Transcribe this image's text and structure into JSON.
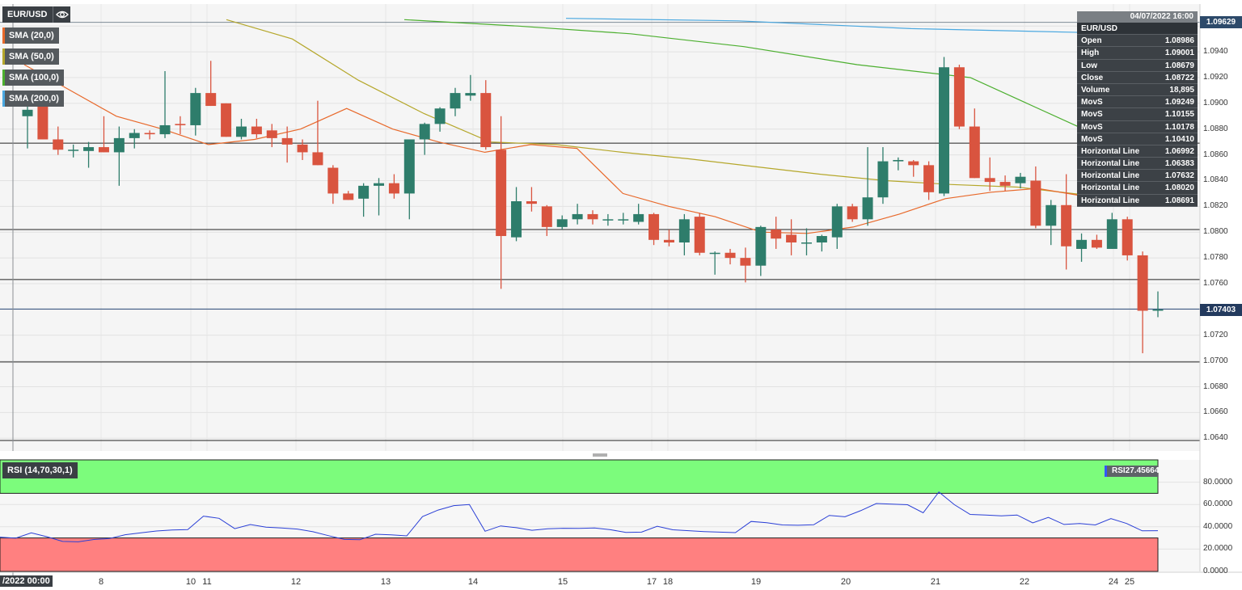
{
  "header": {
    "symbol": "EUR/USD",
    "eye_icon": "eye-icon",
    "indicators": [
      {
        "label": "SMA (20,0)",
        "color": "#e8692b"
      },
      {
        "label": "SMA (50,0)",
        "color": "#b5a72b"
      },
      {
        "label": "SMA (100,0)",
        "color": "#4caf2f"
      },
      {
        "label": "SMA (200,0)",
        "color": "#4aa8e0"
      }
    ]
  },
  "infobox": {
    "datetime": "04/07/2022 16:00",
    "symbol": "EUR/USD",
    "rows": [
      {
        "label": "Open",
        "value": "1.08986"
      },
      {
        "label": "High",
        "value": "1.09001"
      },
      {
        "label": "Low",
        "value": "1.08679"
      },
      {
        "label": "Close",
        "value": "1.08722"
      },
      {
        "label": "Volume",
        "value": "18,895"
      },
      {
        "label": "MovS",
        "value": "1.09249"
      },
      {
        "label": "MovS",
        "value": "1.10155"
      },
      {
        "label": "MovS",
        "value": "1.10178"
      },
      {
        "label": "MovS",
        "value": "1.10410"
      },
      {
        "label": "Horizontal Line",
        "value": "1.06992"
      },
      {
        "label": "Horizontal Line",
        "value": "1.06383"
      },
      {
        "label": "Horizontal Line",
        "value": "1.07632"
      },
      {
        "label": "Horizontal Line",
        "value": "1.08020"
      },
      {
        "label": "Horizontal Line",
        "value": "1.08691"
      }
    ]
  },
  "price_badges": {
    "top": "1.09629",
    "current": "1.07403"
  },
  "price_axis_labels": [
    "1.0940",
    "1.0920",
    "1.0900",
    "1.0880",
    "1.0860",
    "1.0840",
    "1.0820",
    "1.0800",
    "1.0780",
    "1.0760",
    "1.0720",
    "1.0700",
    "1.0680",
    "1.0660",
    "1.0640"
  ],
  "rsi": {
    "tag": "RSI (14,70,30,1)",
    "badge_label": "RSI",
    "badge_value": "27.45664",
    "axis_labels": [
      "80.0000",
      "60.0000",
      "40.0000",
      "20.0000",
      "0.0000"
    ]
  },
  "x_axis": {
    "first": "/2022 00:00",
    "labels": [
      "8",
      "10",
      "11",
      "12",
      "13",
      "14",
      "15",
      "17",
      "18",
      "19",
      "20",
      "21",
      "22",
      "24",
      "25"
    ]
  },
  "colors": {
    "up": "#2e7d6b",
    "down": "#d9543f",
    "rsi_line": "#2a3fd6",
    "overbought": "#7cfc7c",
    "oversold": "#ff8080"
  },
  "chart_data": {
    "type": "candlestick",
    "title": "EUR/USD",
    "ylim": [
      1.0632,
      1.0965
    ],
    "horizontal_lines": [
      1.06992,
      1.06383,
      1.07632,
      1.0802,
      1.08691,
      1.09629,
      1.07403
    ],
    "candles": [
      {
        "o": 1.089,
        "h": 1.0905,
        "l": 1.0865,
        "c": 1.0895
      },
      {
        "o": 1.0898,
        "h": 1.09,
        "l": 1.0872,
        "c": 1.0872
      },
      {
        "o": 1.0872,
        "h": 1.0882,
        "l": 1.086,
        "c": 1.0864
      },
      {
        "o": 1.0864,
        "h": 1.0868,
        "l": 1.0858,
        "c": 1.0864
      },
      {
        "o": 1.0863,
        "h": 1.087,
        "l": 1.085,
        "c": 1.0866
      },
      {
        "o": 1.0866,
        "h": 1.089,
        "l": 1.0862,
        "c": 1.0862
      },
      {
        "o": 1.0862,
        "h": 1.0882,
        "l": 1.0836,
        "c": 1.0873
      },
      {
        "o": 1.0873,
        "h": 1.088,
        "l": 1.0865,
        "c": 1.0877
      },
      {
        "o": 1.0877,
        "h": 1.0879,
        "l": 1.0872,
        "c": 1.0876
      },
      {
        "o": 1.0876,
        "h": 1.0925,
        "l": 1.0873,
        "c": 1.0883
      },
      {
        "o": 1.0884,
        "h": 1.089,
        "l": 1.0876,
        "c": 1.0883
      },
      {
        "o": 1.0883,
        "h": 1.0912,
        "l": 1.0875,
        "c": 1.0908
      },
      {
        "o": 1.0908,
        "h": 1.0933,
        "l": 1.0898,
        "c": 1.0898
      },
      {
        "o": 1.09,
        "h": 1.09,
        "l": 1.0874,
        "c": 1.0874
      },
      {
        "o": 1.0874,
        "h": 1.0888,
        "l": 1.0872,
        "c": 1.0882
      },
      {
        "o": 1.0882,
        "h": 1.0888,
        "l": 1.0873,
        "c": 1.0876
      },
      {
        "o": 1.0879,
        "h": 1.0884,
        "l": 1.0866,
        "c": 1.0873
      },
      {
        "o": 1.0873,
        "h": 1.0882,
        "l": 1.0854,
        "c": 1.0868
      },
      {
        "o": 1.0868,
        "h": 1.0872,
        "l": 1.0856,
        "c": 1.0862
      },
      {
        "o": 1.0862,
        "h": 1.0902,
        "l": 1.0852,
        "c": 1.0852
      },
      {
        "o": 1.085,
        "h": 1.0852,
        "l": 1.0822,
        "c": 1.083
      },
      {
        "o": 1.083,
        "h": 1.0832,
        "l": 1.0825,
        "c": 1.0825
      },
      {
        "o": 1.0826,
        "h": 1.0838,
        "l": 1.0812,
        "c": 1.0836
      },
      {
        "o": 1.0836,
        "h": 1.0842,
        "l": 1.0813,
        "c": 1.0838
      },
      {
        "o": 1.0838,
        "h": 1.0845,
        "l": 1.0826,
        "c": 1.083
      },
      {
        "o": 1.083,
        "h": 1.087,
        "l": 1.081,
        "c": 1.0872
      },
      {
        "o": 1.0872,
        "h": 1.0885,
        "l": 1.086,
        "c": 1.0884
      },
      {
        "o": 1.0884,
        "h": 1.0897,
        "l": 1.0878,
        "c": 1.0896
      },
      {
        "o": 1.0896,
        "h": 1.0912,
        "l": 1.089,
        "c": 1.0908
      },
      {
        "o": 1.0906,
        "h": 1.0922,
        "l": 1.0902,
        "c": 1.0908
      },
      {
        "o": 1.0908,
        "h": 1.0918,
        "l": 1.0864,
        "c": 1.0866
      },
      {
        "o": 1.0864,
        "h": 1.089,
        "l": 1.0756,
        "c": 1.0797
      },
      {
        "o": 1.0796,
        "h": 1.0835,
        "l": 1.0793,
        "c": 1.0824
      },
      {
        "o": 1.0824,
        "h": 1.0835,
        "l": 1.0816,
        "c": 1.0822
      },
      {
        "o": 1.082,
        "h": 1.0821,
        "l": 1.0797,
        "c": 1.0804
      },
      {
        "o": 1.0804,
        "h": 1.0813,
        "l": 1.0802,
        "c": 1.081
      },
      {
        "o": 1.081,
        "h": 1.0822,
        "l": 1.0806,
        "c": 1.0814
      },
      {
        "o": 1.0814,
        "h": 1.0817,
        "l": 1.0806,
        "c": 1.081
      },
      {
        "o": 1.081,
        "h": 1.0814,
        "l": 1.0805,
        "c": 1.081
      },
      {
        "o": 1.081,
        "h": 1.0815,
        "l": 1.0806,
        "c": 1.081
      },
      {
        "o": 1.0808,
        "h": 1.0822,
        "l": 1.0806,
        "c": 1.0814
      },
      {
        "o": 1.0814,
        "h": 1.0815,
        "l": 1.079,
        "c": 1.0794
      },
      {
        "o": 1.0794,
        "h": 1.0802,
        "l": 1.0789,
        "c": 1.0792
      },
      {
        "o": 1.0792,
        "h": 1.0814,
        "l": 1.0782,
        "c": 1.081
      },
      {
        "o": 1.0812,
        "h": 1.0815,
        "l": 1.0782,
        "c": 1.0784
      },
      {
        "o": 1.0784,
        "h": 1.0785,
        "l": 1.0767,
        "c": 1.0784
      },
      {
        "o": 1.0784,
        "h": 1.0787,
        "l": 1.0775,
        "c": 1.078
      },
      {
        "o": 1.078,
        "h": 1.0788,
        "l": 1.0761,
        "c": 1.0774
      },
      {
        "o": 1.0774,
        "h": 1.0805,
        "l": 1.0766,
        "c": 1.0804
      },
      {
        "o": 1.0802,
        "h": 1.0812,
        "l": 1.0787,
        "c": 1.0795
      },
      {
        "o": 1.0798,
        "h": 1.081,
        "l": 1.0782,
        "c": 1.0792
      },
      {
        "o": 1.0792,
        "h": 1.0803,
        "l": 1.0782,
        "c": 1.0792
      },
      {
        "o": 1.0792,
        "h": 1.0798,
        "l": 1.0785,
        "c": 1.0797
      },
      {
        "o": 1.0796,
        "h": 1.0822,
        "l": 1.0787,
        "c": 1.082
      },
      {
        "o": 1.082,
        "h": 1.0822,
        "l": 1.0808,
        "c": 1.081
      },
      {
        "o": 1.081,
        "h": 1.0866,
        "l": 1.0805,
        "c": 1.0827
      },
      {
        "o": 1.0827,
        "h": 1.0866,
        "l": 1.0822,
        "c": 1.0855
      },
      {
        "o": 1.0855,
        "h": 1.0858,
        "l": 1.0848,
        "c": 1.0856
      },
      {
        "o": 1.0855,
        "h": 1.0856,
        "l": 1.0843,
        "c": 1.0852
      },
      {
        "o": 1.0852,
        "h": 1.0855,
        "l": 1.0825,
        "c": 1.0831
      },
      {
        "o": 1.083,
        "h": 1.0936,
        "l": 1.0828,
        "c": 1.0928
      },
      {
        "o": 1.0928,
        "h": 1.093,
        "l": 1.088,
        "c": 1.0882
      },
      {
        "o": 1.0882,
        "h": 1.0896,
        "l": 1.0842,
        "c": 1.0842
      },
      {
        "o": 1.0842,
        "h": 1.0858,
        "l": 1.0832,
        "c": 1.0839
      },
      {
        "o": 1.0839,
        "h": 1.0844,
        "l": 1.0832,
        "c": 1.0836
      },
      {
        "o": 1.0838,
        "h": 1.0846,
        "l": 1.0834,
        "c": 1.0843
      },
      {
        "o": 1.084,
        "h": 1.0851,
        "l": 1.0803,
        "c": 1.0805
      },
      {
        "o": 1.0805,
        "h": 1.0825,
        "l": 1.079,
        "c": 1.0821
      },
      {
        "o": 1.0821,
        "h": 1.0845,
        "l": 1.0771,
        "c": 1.0789
      },
      {
        "o": 1.0787,
        "h": 1.0799,
        "l": 1.0777,
        "c": 1.0794
      },
      {
        "o": 1.0794,
        "h": 1.0798,
        "l": 1.0787,
        "c": 1.0788
      },
      {
        "o": 1.0787,
        "h": 1.0815,
        "l": 1.0787,
        "c": 1.081
      },
      {
        "o": 1.081,
        "h": 1.0812,
        "l": 1.0778,
        "c": 1.0782
      },
      {
        "o": 1.0782,
        "h": 1.0785,
        "l": 1.0706,
        "c": 1.0739
      },
      {
        "o": 1.0739,
        "h": 1.0754,
        "l": 1.0734,
        "c": 1.074
      }
    ],
    "sma20": [
      1.093,
      1.091,
      1.089,
      1.088,
      1.0868,
      1.0872,
      1.088,
      1.0896,
      1.088,
      1.087,
      1.0862,
      1.0868,
      1.0865,
      1.083,
      1.082,
      1.0812,
      1.08,
      1.0799,
      1.0804,
      1.0814,
      1.0826,
      1.0831,
      1.0834,
      1.0828
    ],
    "sma50": [
      1.0965,
      1.095,
      1.0918,
      1.0892,
      1.087,
      1.0868,
      1.0862,
      1.0857,
      1.0851,
      1.0845,
      1.084,
      1.0837,
      1.0835,
      1.0829
    ],
    "sma100": [
      1.0965,
      1.096,
      1.0954,
      1.0944,
      1.093,
      1.092,
      1.088
    ],
    "sma200": [
      1.0966,
      1.0964,
      1.0958,
      1.0955
    ],
    "rsi_values": [
      30.7,
      29.8,
      34.6,
      31.1,
      26.9,
      26.5,
      28.6,
      29.5,
      32.9,
      34.6,
      36.2,
      37.1,
      37.5,
      49.6,
      47.6,
      38.3,
      42.0,
      39.7,
      38.9,
      38.0,
      35.6,
      32.0,
      28.7,
      28.4,
      33.3,
      32.8,
      31.9,
      49.1,
      55.0,
      59.0,
      59.9,
      36.0,
      40.8,
      39.2,
      36.9,
      38.2,
      38.7,
      38.6,
      38.9,
      37.4,
      35.0,
      35.2,
      40.5,
      37.3,
      36.5,
      35.7,
      35.2,
      34.8,
      44.8,
      43.6,
      41.7,
      41.4,
      41.8,
      50.2,
      49.0,
      54.4,
      60.9,
      60.3,
      59.8,
      52.5,
      71.2,
      59.8,
      51.1,
      50.6,
      49.8,
      50.6,
      43.5,
      48.4,
      42.1,
      43.0,
      41.7,
      47.4,
      43.0,
      36.4,
      36.5
    ],
    "rsi_levels": {
      "overbought": 70,
      "oversold": 30
    },
    "rsi_ylim": [
      0,
      100
    ]
  }
}
